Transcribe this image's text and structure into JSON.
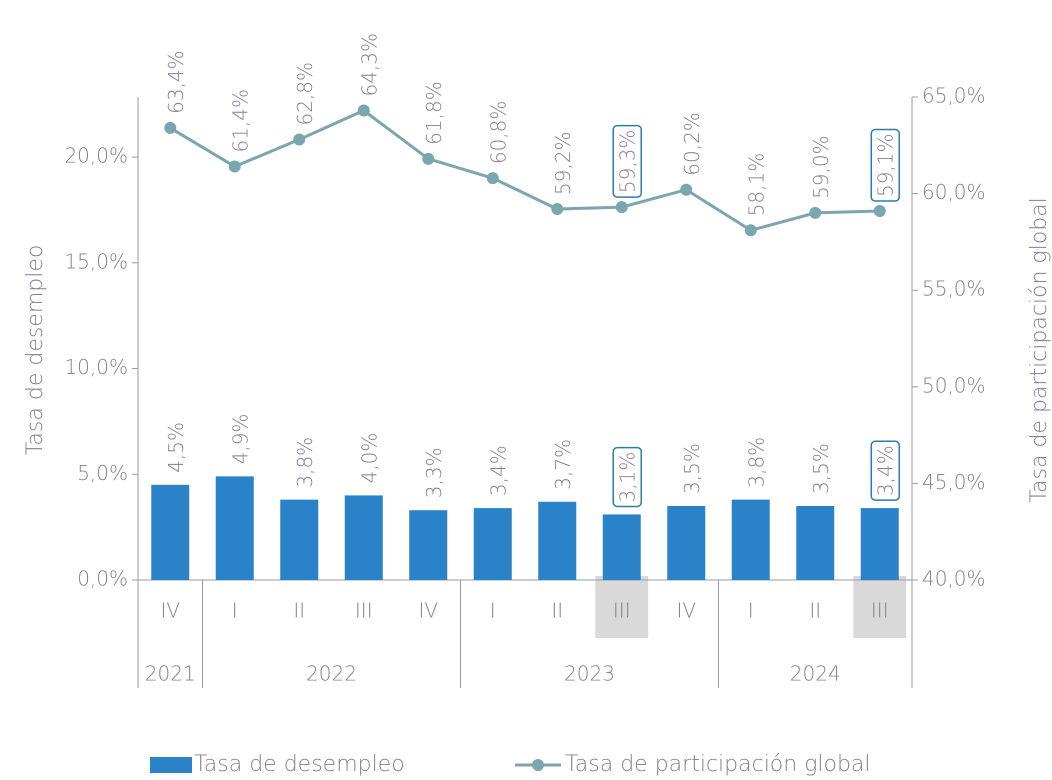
{
  "chart_data": {
    "type": "bar_line",
    "categories": [
      "IV",
      "I",
      "II",
      "III",
      "IV",
      "I",
      "II",
      "III",
      "IV",
      "I",
      "II",
      "III"
    ],
    "groups": [
      {
        "label": "2021",
        "start": 0,
        "end": 0
      },
      {
        "label": "2022",
        "start": 1,
        "end": 4
      },
      {
        "label": "2023",
        "start": 5,
        "end": 8
      },
      {
        "label": "2024",
        "start": 9,
        "end": 11
      }
    ],
    "highlight": [
      7,
      11
    ],
    "y_label": "Tasa de desempleo",
    "y2_label": "Tasa de participación global",
    "series": [
      {
        "name": "Tasa de desempleo",
        "type": "bar",
        "color": "#2a82c9",
        "values": [
          4.5,
          4.9,
          3.8,
          4.0,
          3.3,
          3.4,
          3.7,
          3.1,
          3.5,
          3.8,
          3.5,
          3.4
        ],
        "value_labels": [
          "4,5%",
          "4,9%",
          "3,8%",
          "4,0%",
          "3,3%",
          "3,4%",
          "3,7%",
          "3,1%",
          "3,5%",
          "3,8%",
          "3,5%",
          "3,4%"
        ]
      },
      {
        "name": "Tasa de participación global",
        "type": "line",
        "axis": "y2",
        "color": "#7ba6ae",
        "values": [
          63.4,
          61.4,
          62.8,
          64.3,
          61.8,
          60.8,
          59.2,
          59.3,
          60.2,
          58.1,
          59.0,
          59.1
        ],
        "value_labels": [
          "63,4%",
          "61,4%",
          "62,8%",
          "64,3%",
          "61,8%",
          "60,8%",
          "59,2%",
          "59,3%",
          "60,2%",
          "58,1%",
          "59,0%",
          "59,1%"
        ]
      }
    ],
    "ylim": [
      0,
      22.84
    ],
    "yticks": [
      {
        "value": 0,
        "label": "0,0%"
      },
      {
        "value": 5,
        "label": "5,0%"
      },
      {
        "value": 10,
        "label": "10,0%"
      },
      {
        "value": 15,
        "label": "15,0%"
      },
      {
        "value": 20,
        "label": "20,0%"
      }
    ],
    "y2lim": [
      40,
      65
    ],
    "y2ticks": [
      {
        "value": 40,
        "label": "40,0%"
      },
      {
        "value": 45,
        "label": "45,0%"
      },
      {
        "value": 50,
        "label": "50,0%"
      },
      {
        "value": 55,
        "label": "55,0%"
      },
      {
        "value": 60,
        "label": "60,0%"
      },
      {
        "value": 65,
        "label": "65,0%"
      }
    ],
    "legend": "bottom"
  }
}
